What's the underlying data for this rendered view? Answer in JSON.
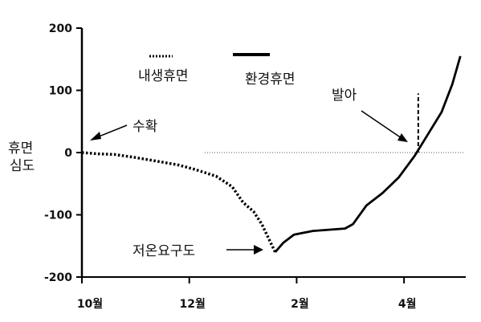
{
  "chart_data": {
    "type": "line",
    "title": "",
    "xlabel": "",
    "ylabel": "휴면\n심도",
    "ylabel_lines": [
      "휴면",
      "심도"
    ],
    "ylim": [
      -200,
      200
    ],
    "y_ticks": [
      "200",
      "100",
      "0",
      "-100",
      "-200"
    ],
    "y_tick_values": [
      200,
      100,
      0,
      -100,
      -200
    ],
    "x_tick_labels": [
      "10월",
      "12월",
      "2월",
      "4월"
    ],
    "x_tick_months": [
      0,
      2,
      4,
      6
    ],
    "xlim_months": [
      0,
      7
    ],
    "legend": {
      "placement": "top-left",
      "entries": [
        {
          "label": "내생휴면",
          "style": "dotted"
        },
        {
          "label": "환경휴면",
          "style": "solid"
        }
      ]
    },
    "series": [
      {
        "name": "내생휴면",
        "style": "dotted",
        "x_months": [
          0,
          0.3,
          0.6,
          1.0,
          1.4,
          1.8,
          2.1,
          2.5,
          2.8,
          3.0,
          3.2,
          3.35,
          3.6
        ],
        "values": [
          0,
          -2,
          -3,
          -8,
          -14,
          -20,
          -27,
          -38,
          -55,
          -80,
          -95,
          -115,
          -160
        ]
      },
      {
        "name": "환경휴면",
        "style": "solid",
        "x_months": [
          3.6,
          3.75,
          3.95,
          4.3,
          4.6,
          4.9,
          5.05,
          5.3,
          5.6,
          5.9,
          6.2,
          6.45,
          6.7,
          6.9,
          7.05
        ],
        "values": [
          -160,
          -145,
          -132,
          -126,
          -124,
          -122,
          -115,
          -85,
          -65,
          -40,
          -5,
          30,
          65,
          110,
          155
        ]
      }
    ],
    "reference_line": {
      "y": 0,
      "style": "dotted"
    },
    "annotations": [
      {
        "id": "harvest",
        "text": "수확",
        "x_month": 0.05,
        "y": 15
      },
      {
        "id": "low-temp",
        "text": "저온요구도",
        "x_month": 3.6,
        "y": -160
      },
      {
        "id": "budbreak",
        "text": "발아",
        "x_month": 6.25,
        "y": 0
      }
    ],
    "budbreak_marker": {
      "x_month": 6.25,
      "y_from": 0,
      "y_to": 95
    }
  }
}
